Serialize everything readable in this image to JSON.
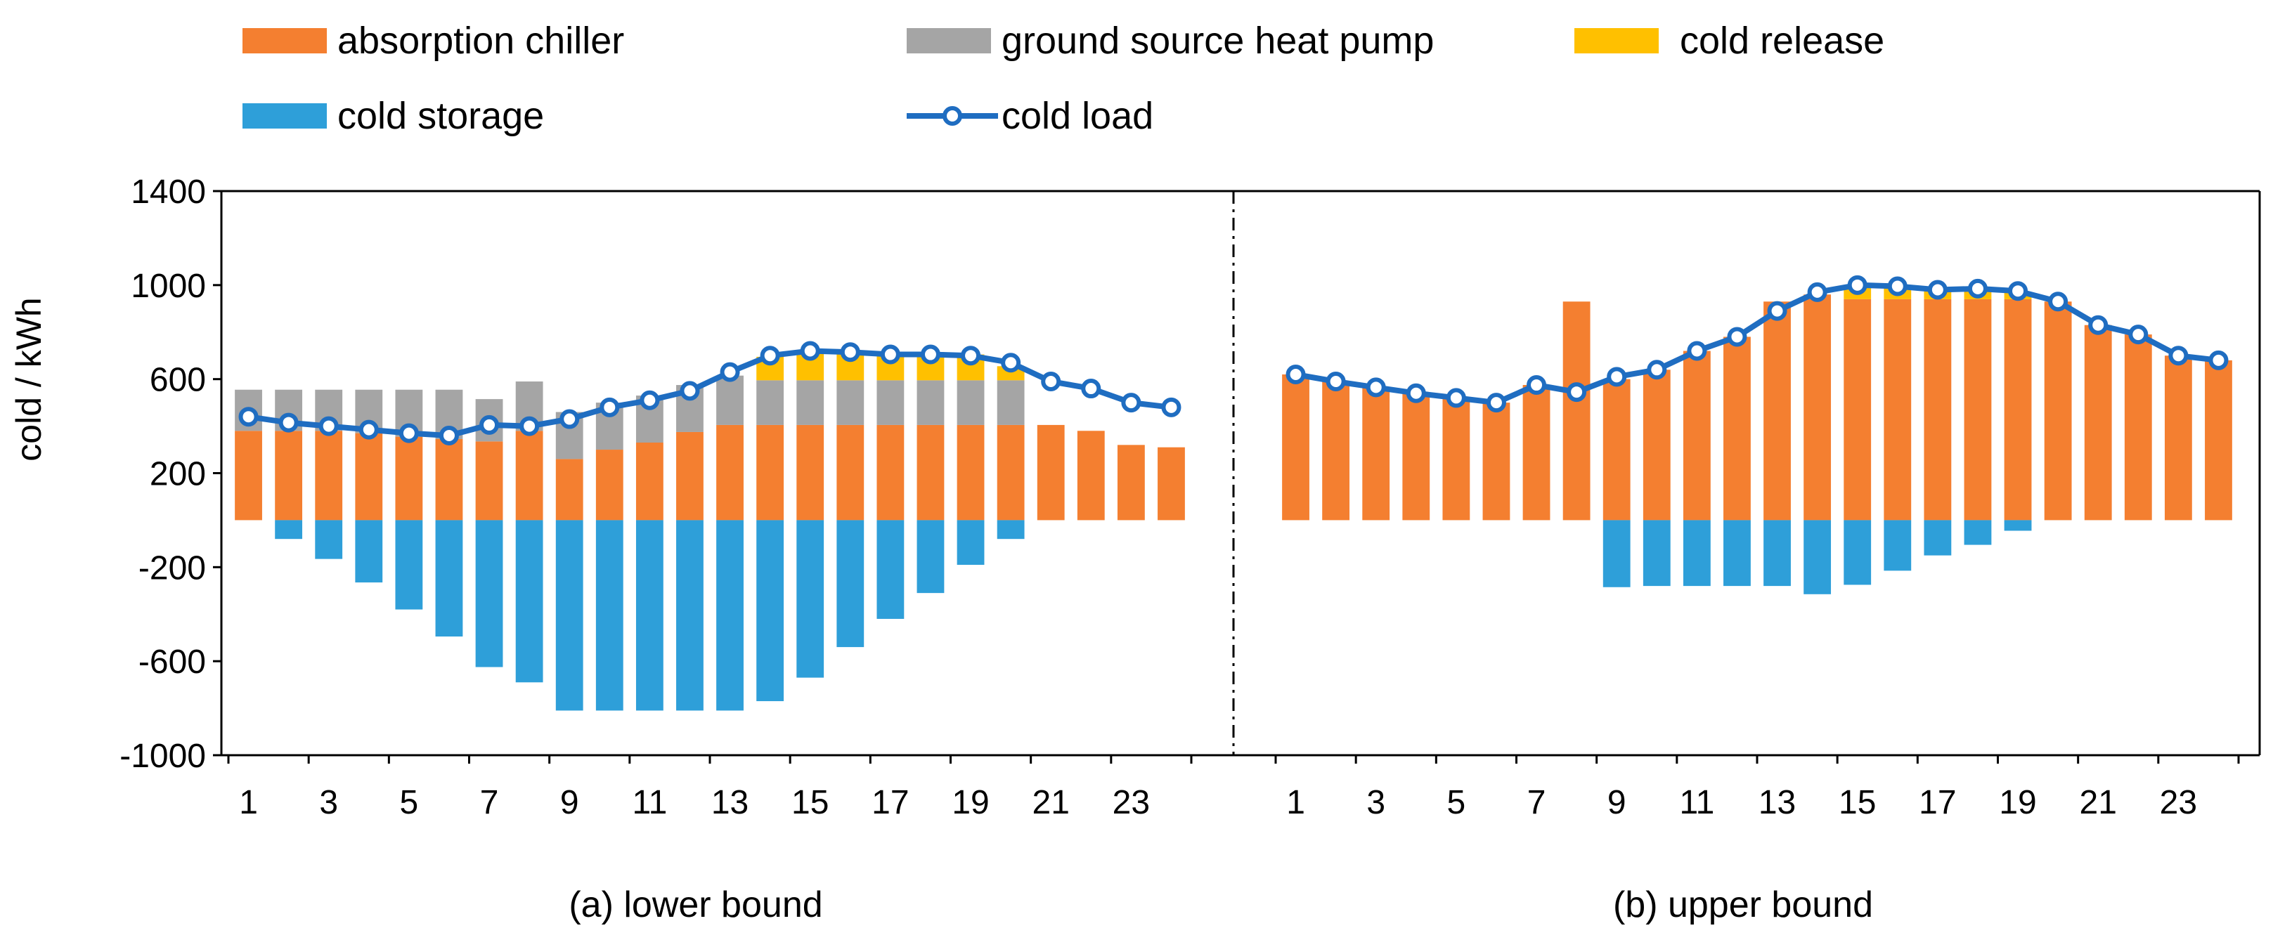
{
  "chart_data": {
    "type": "bar",
    "ylabel": "cold / kWh",
    "ylim": [
      -1000,
      1400
    ],
    "yticks": [
      -1000,
      -600,
      -200,
      200,
      600,
      1000,
      1400
    ],
    "x": [
      1,
      2,
      3,
      4,
      5,
      6,
      7,
      8,
      9,
      10,
      11,
      12,
      13,
      14,
      15,
      16,
      17,
      18,
      19,
      20,
      21,
      22,
      23,
      24
    ],
    "xtick_labels": [
      "1",
      "3",
      "5",
      "7",
      "9",
      "11",
      "13",
      "15",
      "17",
      "19",
      "21",
      "23"
    ],
    "legend": {
      "placement": "top",
      "entries": [
        {
          "label": "absorption chiller",
          "color": "#F47F30",
          "kind": "bar"
        },
        {
          "label": "ground source heat pump",
          "color": "#A5A5A5",
          "kind": "bar"
        },
        {
          "label": "cold release",
          "color": "#FFC000",
          "kind": "bar"
        },
        {
          "label": "cold storage",
          "color": "#2E9FD9",
          "kind": "bar"
        },
        {
          "label": "cold load",
          "color": "#1F6DC1",
          "kind": "line"
        }
      ]
    },
    "panels": [
      {
        "caption": "(a) lower bound",
        "series": [
          {
            "name": "absorption chiller",
            "values": [
              380,
              380,
              380,
              370,
              355,
              345,
              335,
              380,
              260,
              300,
              330,
              375,
              405,
              405,
              405,
              405,
              405,
              405,
              405,
              405,
              405,
              380,
              320,
              310
            ]
          },
          {
            "name": "ground source heat pump",
            "values": [
              175,
              175,
              175,
              185,
              200,
              210,
              180,
              210,
              200,
              200,
              200,
              200,
              210,
              190,
              190,
              190,
              190,
              190,
              190,
              190,
              0,
              0,
              0,
              0
            ]
          },
          {
            "name": "cold release",
            "values": [
              0,
              0,
              0,
              0,
              0,
              0,
              0,
              0,
              0,
              0,
              0,
              0,
              0,
              100,
              125,
              125,
              120,
              120,
              110,
              60,
              0,
              0,
              0,
              0
            ]
          },
          {
            "name": "cold storage",
            "values": [
              0,
              -80,
              -165,
              -265,
              -380,
              -495,
              -625,
              -690,
              -810,
              -810,
              -810,
              -810,
              -810,
              -770,
              -670,
              -540,
              -420,
              -310,
              -190,
              -80,
              0,
              0,
              0,
              0
            ]
          },
          {
            "name": "cold load",
            "values": [
              440,
              415,
              400,
              385,
              370,
              360,
              405,
              400,
              430,
              480,
              510,
              550,
              630,
              700,
              720,
              715,
              705,
              705,
              700,
              670,
              590,
              560,
              500,
              480
            ]
          }
        ]
      },
      {
        "caption": "(b) upper bound",
        "series": [
          {
            "name": "absorption chiller",
            "values": [
              620,
              590,
              565,
              540,
              520,
              500,
              575,
              930,
              600,
              640,
              720,
              780,
              930,
              960,
              940,
              940,
              940,
              940,
              940,
              930,
              830,
              790,
              700,
              680
            ]
          },
          {
            "name": "ground source heat pump",
            "values": [
              0,
              0,
              0,
              0,
              0,
              0,
              0,
              0,
              0,
              0,
              0,
              0,
              0,
              0,
              0,
              0,
              0,
              0,
              0,
              0,
              0,
              0,
              0,
              0
            ]
          },
          {
            "name": "cold release",
            "values": [
              0,
              0,
              0,
              0,
              0,
              0,
              0,
              0,
              0,
              0,
              0,
              0,
              0,
              0,
              55,
              55,
              40,
              45,
              30,
              0,
              0,
              0,
              0,
              0
            ]
          },
          {
            "name": "cold storage",
            "values": [
              0,
              0,
              0,
              0,
              0,
              0,
              0,
              0,
              -285,
              -280,
              -280,
              -280,
              -280,
              -315,
              -275,
              -215,
              -150,
              -105,
              -45,
              0,
              0,
              0,
              0,
              0
            ]
          },
          {
            "name": "cold load",
            "values": [
              620,
              590,
              565,
              540,
              520,
              500,
              575,
              545,
              610,
              640,
              720,
              780,
              890,
              970,
              1000,
              995,
              980,
              985,
              975,
              930,
              830,
              790,
              700,
              680
            ]
          }
        ]
      }
    ]
  }
}
